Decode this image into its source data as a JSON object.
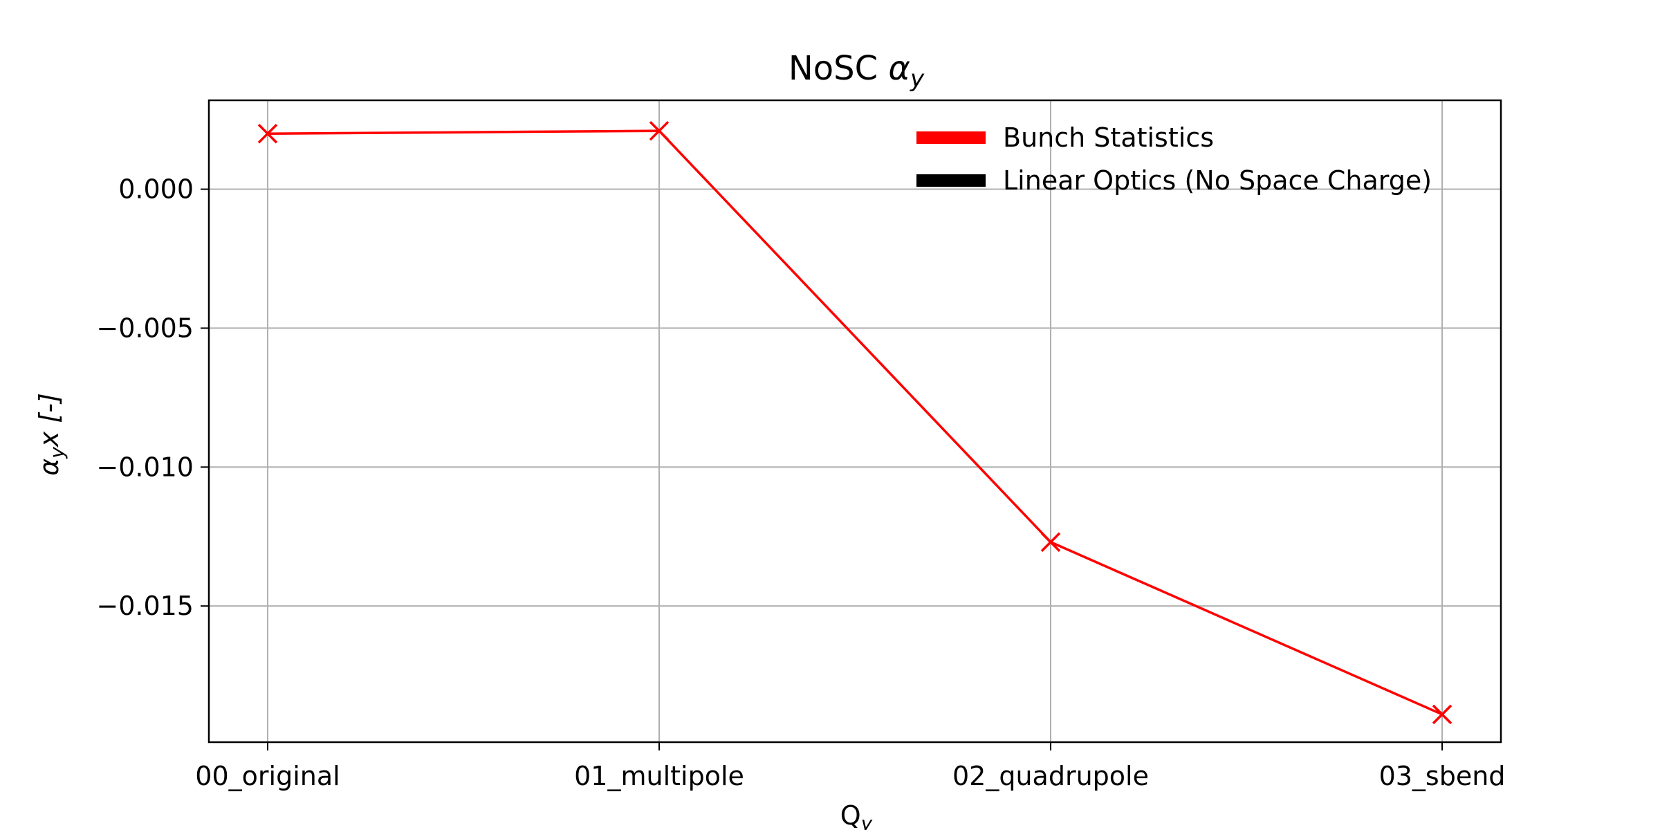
{
  "chart_data": {
    "type": "line",
    "title": "NoSC",
    "title_math": "α",
    "title_math_sub": "y",
    "xlabel": "Q",
    "xlabel_sub": "y",
    "ylabel_math": "α",
    "ylabel_math_sub": "y",
    "ylabel_rest": "x [-]",
    "categories": [
      "00_original",
      "01_multipole",
      "02_quadrupole",
      "03_sbend"
    ],
    "series": [
      {
        "name": "Bunch Statistics",
        "color": "#ff0000",
        "marker": "x",
        "values": [
          0.002,
          0.0021,
          -0.0127,
          -0.0189
        ]
      }
    ],
    "legend_entries": [
      {
        "label": "Bunch Statistics",
        "color": "#ff0000"
      },
      {
        "label": "Linear Optics (No Space Charge)",
        "color": "#000000"
      }
    ],
    "ylim": [
      -0.0199,
      0.0032
    ],
    "yticks": [
      0.0,
      -0.005,
      -0.01,
      -0.015
    ],
    "ytick_labels": [
      "0.000",
      "−0.005",
      "−0.010",
      "−0.015"
    ],
    "grid": true,
    "legend_position": "upper-right"
  }
}
